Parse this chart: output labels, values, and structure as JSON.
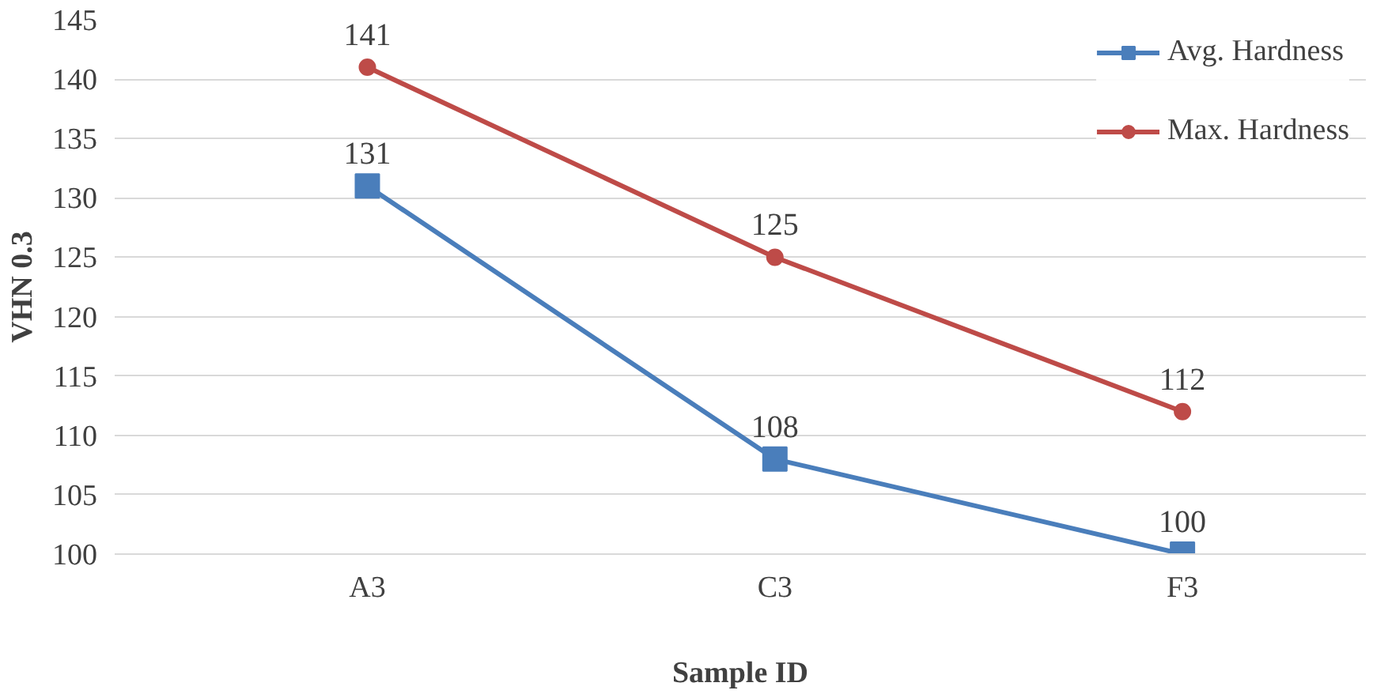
{
  "chart_data": {
    "type": "line",
    "xlabel": "Sample ID",
    "ylabel": "VHN 0.3",
    "categories": [
      "A3",
      "C3",
      "F3"
    ],
    "series": [
      {
        "name": "Avg. Hardness",
        "color": "#4a7ebb",
        "marker": "square",
        "values": [
          131,
          108,
          100
        ]
      },
      {
        "name": "Max. Hardness",
        "color": "#be4b48",
        "marker": "circle",
        "values": [
          141,
          125,
          112
        ]
      }
    ],
    "ylim": [
      100,
      145
    ],
    "yticks": [
      100,
      105,
      110,
      115,
      120,
      125,
      130,
      135,
      140,
      145
    ],
    "grid": "y",
    "legend": "top right",
    "data_labels": true,
    "line_style": "solid"
  }
}
